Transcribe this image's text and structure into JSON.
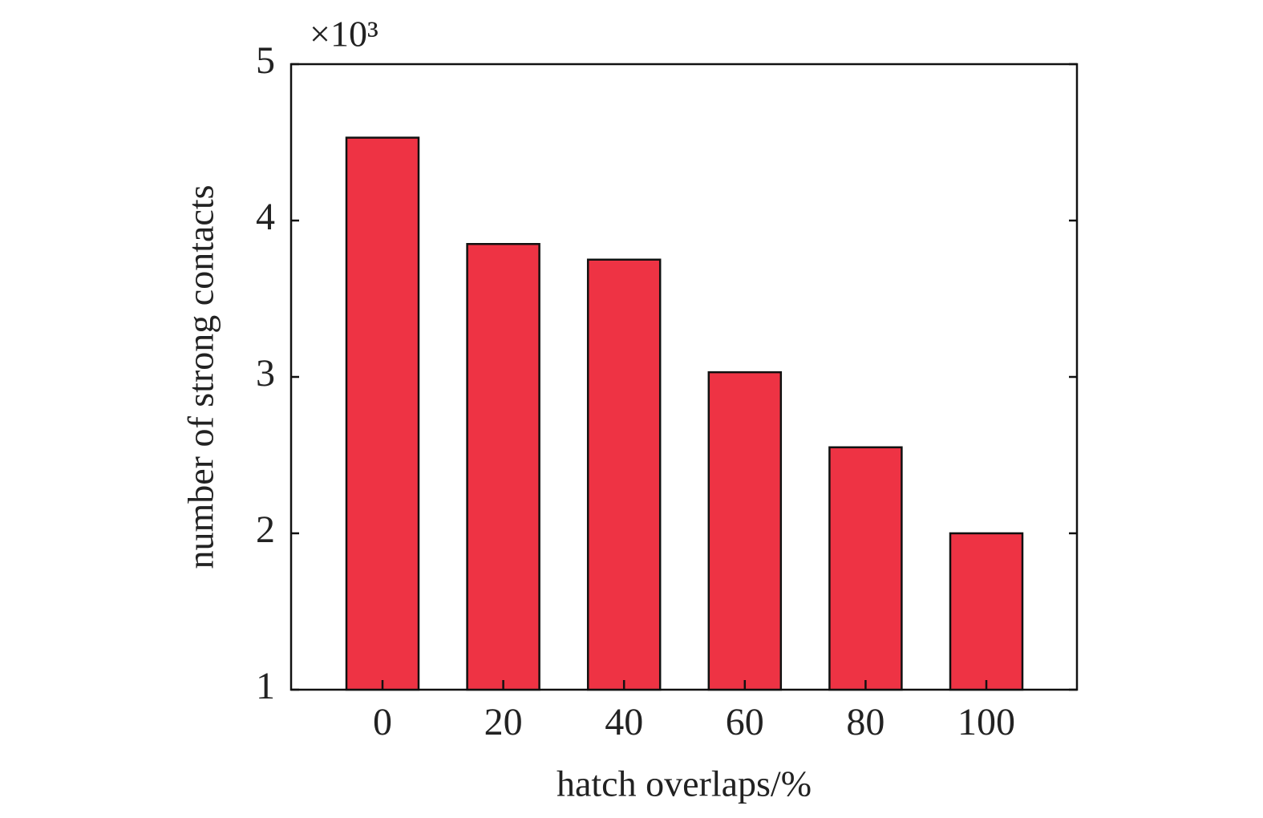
{
  "chart_data": {
    "type": "bar",
    "xlabel": "hatch overlaps/%",
    "ylabel": "number of strong contacts",
    "y_multiplier": "×10³",
    "categories": [
      "0",
      "20",
      "40",
      "60",
      "80",
      "100"
    ],
    "values": [
      4.53,
      3.85,
      3.75,
      3.03,
      2.55,
      2.0
    ],
    "color": "#ee3344",
    "ylim": [
      1,
      5
    ],
    "yticks": [
      1,
      2,
      3,
      4,
      5
    ],
    "grid": false
  }
}
